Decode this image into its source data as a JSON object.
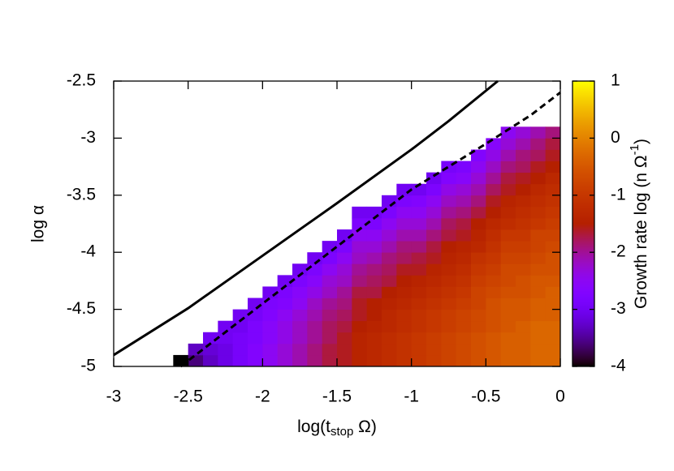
{
  "chart_data": {
    "type": "heatmap",
    "xlabel": [
      "log(t",
      "stop",
      " Ω)"
    ],
    "ylabel": "log α",
    "colorbar_label": [
      "Growth rate log (n Ω",
      "-1",
      ")"
    ],
    "colormap": "gnuplot",
    "xlim": [
      -3,
      0
    ],
    "xticks": [
      -3,
      -2.5,
      -2,
      -1.5,
      -1,
      -0.5,
      0
    ],
    "ylim": [
      -5,
      -2.5
    ],
    "yticks": [
      -5,
      -4.5,
      -4,
      -3.5,
      -3,
      -2.5
    ],
    "clim": [
      -4,
      1
    ],
    "cticks": [
      -4,
      -3,
      -2,
      -1,
      0,
      1
    ],
    "x_edges": [
      -2.6,
      -2.5,
      -2.4,
      -2.3,
      -2.2,
      -2.1,
      -2.0,
      -1.9,
      -1.8,
      -1.7,
      -1.6,
      -1.5,
      -1.4,
      -1.3,
      -1.2,
      -1.1,
      -1.0,
      -0.9,
      -0.8,
      -0.7,
      -0.6,
      -0.5,
      -0.4,
      -0.3,
      -0.2,
      -0.1,
      0
    ],
    "y_edges": [
      -5.0,
      -4.9,
      -4.8,
      -4.7,
      -4.6,
      -4.5,
      -4.4,
      -4.3,
      -4.2,
      -4.1,
      -4.0,
      -3.9,
      -3.8,
      -3.7,
      -3.6,
      -3.5,
      -3.4,
      -3.3,
      -3.2,
      -3.1,
      -3.0,
      -2.9
    ],
    "z": [
      [
        -4.0
      ],
      [
        -3.6,
        -3.3
      ],
      [
        -3.3,
        -3.2,
        -3.0
      ],
      [
        -3.1,
        -3.1,
        -3.0,
        -3.0
      ],
      [
        -2.9,
        -2.9,
        -2.9,
        -3.0,
        -3.0
      ],
      [
        -2.7,
        -2.7,
        -2.8,
        -2.8,
        -2.9,
        -3.0
      ],
      [
        -2.5,
        -2.5,
        -2.6,
        -2.6,
        -2.7,
        -2.8,
        -3.0
      ],
      [
        -2.3,
        -2.3,
        -2.4,
        -2.4,
        -2.5,
        -2.7,
        -2.8,
        -3.0
      ],
      [
        -2.1,
        -2.1,
        -2.2,
        -2.2,
        -2.3,
        -2.5,
        -2.6,
        -2.8,
        -3.0
      ],
      [
        -1.9,
        -1.9,
        -2.0,
        -2.0,
        -2.1,
        -2.2,
        -2.4,
        -2.6,
        -2.8,
        -3.0
      ],
      [
        -1.7,
        -1.7,
        -1.8,
        -1.8,
        -1.9,
        -2.0,
        -2.2,
        -2.3,
        -2.5,
        -2.8,
        -3.0
      ],
      [
        -1.6,
        -1.6,
        -1.6,
        -1.7,
        -1.8,
        -1.9,
        -2.0,
        -2.2,
        -2.3,
        -2.5,
        -2.8,
        -3.0
      ],
      [
        -1.4,
        -1.4,
        -1.4,
        -1.5,
        -1.6,
        -1.6,
        -1.7,
        -1.9,
        -2.0,
        -2.2,
        -2.3,
        -2.5,
        -2.8,
        -3.0
      ],
      [
        -1.3,
        -1.3,
        -1.3,
        -1.4,
        -1.5,
        -1.5,
        -1.7,
        -1.8,
        -1.9,
        -2.1,
        -2.3,
        -2.5,
        -2.8,
        -3.0
      ],
      [
        -1.2,
        -1.2,
        -1.2,
        -1.3,
        -1.3,
        -1.4,
        -1.5,
        -1.7,
        -1.8,
        -1.9,
        -2.1,
        -2.3,
        -2.5,
        -2.8,
        -3.0
      ],
      [
        -1.1,
        -1.1,
        -1.1,
        -1.2,
        -1.2,
        -1.3,
        -1.4,
        -1.5,
        -1.6,
        -1.8,
        -1.9,
        -2.1,
        -2.3,
        -2.5,
        -2.8,
        -3.0
      ],
      [
        -1.0,
        -1.0,
        -1.0,
        -1.1,
        -1.1,
        -1.2,
        -1.3,
        -1.4,
        -1.6,
        -1.7,
        -1.9,
        -2.1,
        -2.3,
        -2.5,
        -2.7,
        -3.0
      ],
      [
        -0.9,
        -0.9,
        -0.9,
        -1.0,
        -1.0,
        -1.1,
        -1.2,
        -1.3,
        -1.4,
        -1.6,
        -1.7,
        -1.9,
        -2.1,
        -2.3,
        -2.5,
        -2.8,
        -3.0
      ],
      [
        -0.8,
        -0.8,
        -0.8,
        -0.9,
        -0.9,
        -1.0,
        -1.1,
        -1.2,
        -1.3,
        -1.4,
        -1.5,
        -1.7,
        -1.8,
        -2.0,
        -2.2,
        -2.4,
        -2.7,
        -2.9
      ],
      [
        -0.7,
        -0.7,
        -0.7,
        -0.8,
        -0.8,
        -0.9,
        -1.0,
        -1.1,
        -1.2,
        -1.3,
        -1.4,
        -1.6,
        -1.7,
        -1.9,
        -2.1,
        -2.3,
        -2.6,
        -2.8
      ],
      [
        -0.6,
        -0.6,
        -0.6,
        -0.7,
        -0.7,
        -0.8,
        -0.8,
        -0.9,
        -1.0,
        -1.1,
        -1.3,
        -1.4,
        -1.5,
        -1.7,
        -1.9,
        -2.1,
        -2.3,
        -2.5,
        -2.7
      ],
      [
        -0.5,
        -0.5,
        -0.5,
        -0.6,
        -0.6,
        -0.6,
        -0.7,
        -0.8,
        -0.9,
        -1.0,
        -1.1,
        -1.2,
        -1.3,
        -1.5,
        -1.6,
        -1.8,
        -2.0,
        -2.2,
        -2.4,
        -2.6
      ],
      [
        -0.4,
        -0.4,
        -0.4,
        -0.5,
        -0.5,
        -0.5,
        -0.6,
        -0.7,
        -0.7,
        -0.8,
        -0.9,
        -1.0,
        -1.2,
        -1.3,
        -1.4,
        -1.6,
        -1.7,
        -1.9,
        -2.1,
        -2.3,
        -2.5
      ],
      [
        -0.4,
        -0.4,
        -0.4,
        -0.4,
        -0.5,
        -0.5,
        -0.6,
        -0.6,
        -0.7,
        -0.8,
        -0.9,
        -1.0,
        -1.1,
        -1.2,
        -1.3,
        -1.5,
        -1.6,
        -1.8,
        -1.9,
        -2.1,
        -2.3
      ],
      [
        -0.3,
        -0.3,
        -0.3,
        -0.3,
        -0.4,
        -0.4,
        -0.5,
        -0.5,
        -0.6,
        -0.7,
        -0.8,
        -0.8,
        -1.0,
        -1.1,
        -1.2,
        -1.3,
        -1.5,
        -1.6,
        -1.8,
        -1.9,
        -2.1
      ],
      [
        -0.3,
        -0.3,
        -0.3,
        -0.3,
        -0.4,
        -0.4,
        -0.4,
        -0.5,
        -0.6,
        -0.6,
        -0.7,
        -0.8,
        -0.9,
        -1.0,
        -1.1,
        -1.2,
        -1.3,
        -1.5,
        -1.6,
        -1.7,
        -1.9
      ]
    ],
    "lines": [
      {
        "style": "solid",
        "color": "#000000",
        "x": [
          -3,
          -2.5,
          -2,
          -1.5,
          -1,
          -0.75,
          -0.42
        ],
        "y": [
          -4.9,
          -4.49,
          -4.03,
          -3.57,
          -3.1,
          -2.85,
          -2.5
        ]
      },
      {
        "style": "dashed",
        "color": "#000000",
        "x": [
          -2.55,
          -2,
          -1.5,
          -1,
          -0.5,
          -0.2,
          0
        ],
        "y": [
          -5,
          -4.45,
          -3.95,
          -3.45,
          -3.05,
          -2.8,
          -2.6
        ]
      }
    ]
  }
}
